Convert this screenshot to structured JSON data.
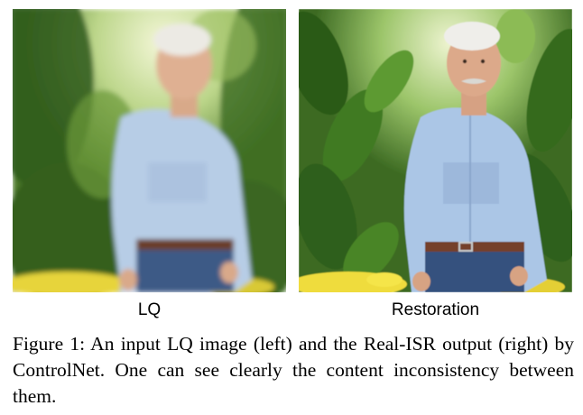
{
  "figure": {
    "panels": [
      {
        "label": "LQ",
        "image_description": "blurry photo of an elderly man in a light blue shirt standing among green leaves and yellow flowers"
      },
      {
        "label": "Restoration",
        "image_description": "sharp restored photo of the same elderly man with mustache, light blue shirt, green leaves and yellow flowers"
      }
    ],
    "caption": "Figure 1: An input LQ image (left) and the Real-ISR output (right) by ControlNet. One can see clearly the content inconsistency between them."
  }
}
